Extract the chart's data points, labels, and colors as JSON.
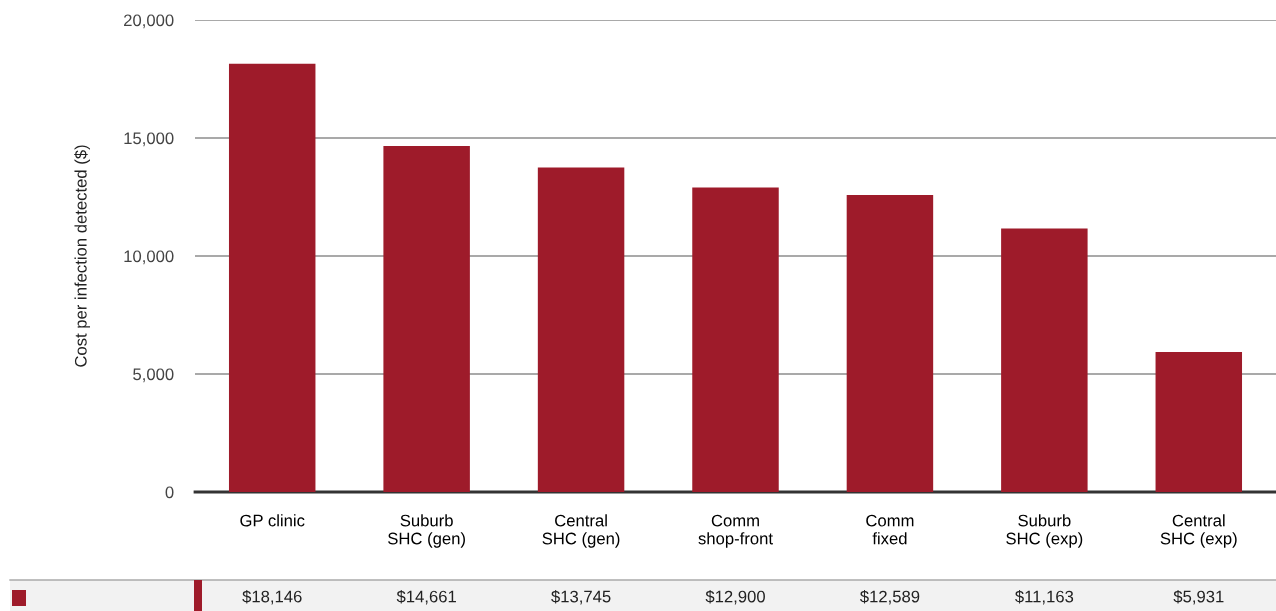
{
  "chart_data": {
    "type": "bar",
    "ylabel": "Cost per infection detected ($)",
    "categories": [
      "GP clinic",
      "Suburb\nSHC (gen)",
      "Central\nSHC (gen)",
      "Comm\nshop-front",
      "Comm\nfixed",
      "Suburb\nSHC (exp)",
      "Central\nSHC (exp)"
    ],
    "series": [
      {
        "color": "#9e1b2a",
        "values": [
          18146,
          14661,
          13745,
          12900,
          12589,
          11163,
          5931
        ],
        "value_labels": [
          "$18,146",
          "$14,661",
          "$13,745",
          "$12,900",
          "$12,589",
          "$11,163",
          "$5,931"
        ]
      }
    ],
    "ylim": [
      0,
      20000
    ],
    "yticks": [
      0,
      {
        "value": 5000,
        "label": "5,000"
      },
      {
        "value": 10000,
        "label": "10,000"
      },
      {
        "value": 15000,
        "label": "15,000"
      },
      {
        "value": 20000,
        "label": "20,000"
      }
    ],
    "grid": "y"
  }
}
